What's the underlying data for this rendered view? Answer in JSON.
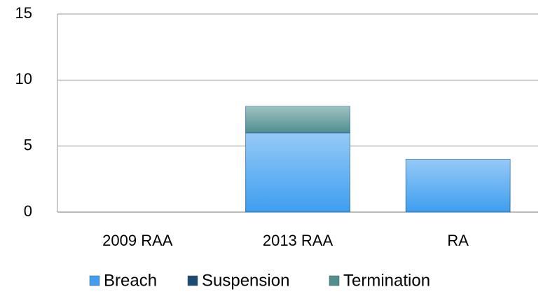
{
  "chart_data": {
    "type": "stacked_bar",
    "categories": [
      "2009 RAA",
      "2013 RAA",
      "RA"
    ],
    "series": [
      {
        "name": "Breach",
        "color": "#3f9ef0",
        "values": [
          0,
          6,
          4
        ]
      },
      {
        "name": "Suspension",
        "color": "#1b4b72",
        "values": [
          0,
          0,
          0
        ]
      },
      {
        "name": "Termination",
        "color": "#4f8f8f",
        "values": [
          0,
          2,
          0
        ]
      }
    ],
    "ylim": [
      0,
      15
    ],
    "yticks": [
      0,
      5,
      10,
      15
    ],
    "grid": true,
    "legend": "bottom"
  }
}
